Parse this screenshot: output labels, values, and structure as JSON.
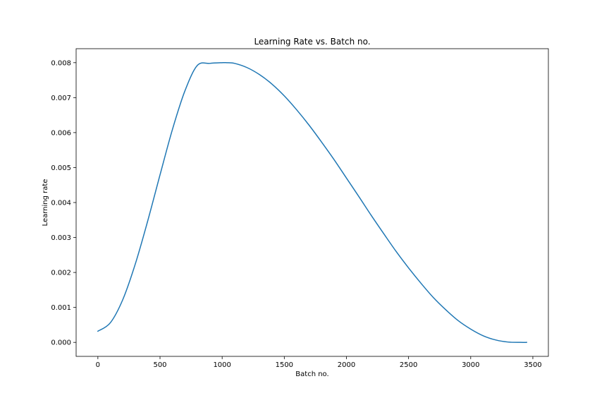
{
  "chart_data": {
    "type": "line",
    "title": "Learning Rate vs. Batch no.",
    "xlabel": "Batch no.",
    "ylabel": "Learning rate",
    "xlim": [
      -175,
      3625
    ],
    "ylim": [
      -0.0004,
      0.0084
    ],
    "xticks": [
      0,
      500,
      1000,
      1500,
      2000,
      2500,
      3000,
      3500
    ],
    "xtick_labels": [
      "0",
      "500",
      "1000",
      "1500",
      "2000",
      "2500",
      "3000",
      "3500"
    ],
    "yticks": [
      0.0,
      0.001,
      0.002,
      0.003,
      0.004,
      0.005,
      0.006,
      0.007,
      0.008
    ],
    "ytick_labels": [
      "0.000",
      "0.001",
      "0.002",
      "0.003",
      "0.004",
      "0.005",
      "0.006",
      "0.007",
      "0.008"
    ],
    "grid": false,
    "legend": "none",
    "series": [
      {
        "color": "#1f77b4",
        "x": [
          0,
          100,
          200,
          300,
          400,
          500,
          600,
          700,
          800,
          900,
          1000,
          1036,
          1100,
          1200,
          1300,
          1400,
          1500,
          1600,
          1700,
          1800,
          1900,
          2000,
          2100,
          2200,
          2300,
          2400,
          2500,
          2600,
          2700,
          2800,
          2900,
          3000,
          3100,
          3200,
          3300,
          3400,
          3450
        ],
        "y": [
          0.00032,
          0.00056,
          0.00122,
          0.00223,
          0.00346,
          0.00479,
          0.00609,
          0.00719,
          0.00792,
          0.00798,
          0.008,
          0.008,
          0.00798,
          0.00786,
          0.00766,
          0.00739,
          0.00705,
          0.00665,
          0.00621,
          0.00573,
          0.00523,
          0.0047,
          0.00417,
          0.00363,
          0.00311,
          0.0026,
          0.00213,
          0.00169,
          0.00128,
          0.00093,
          0.00062,
          0.00038,
          0.00019,
          7e-05,
          1e-05,
          0.0,
          0.0
        ]
      }
    ]
  }
}
